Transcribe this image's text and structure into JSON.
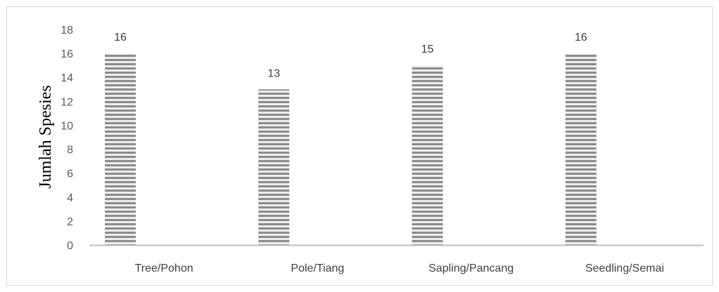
{
  "chart_data": {
    "type": "bar",
    "title": "",
    "xlabel": "",
    "ylabel": "Jumlah Spesies",
    "categories": [
      "Tree/Pohon",
      "Pole/Tiang",
      "Sapling/Pancang",
      "Seedling/Semai"
    ],
    "values": [
      16,
      13,
      15,
      16
    ],
    "data_labels": [
      "16",
      "13",
      "15",
      "16"
    ],
    "ylim": [
      0,
      18
    ],
    "yticks": [
      "0",
      "2",
      "4",
      "6",
      "8",
      "10",
      "12",
      "14",
      "16",
      "18"
    ],
    "grid": false,
    "legend": "none",
    "bar_pattern": "horizontal-stripes",
    "colors": {
      "bar_stripe_dark": "#8c8c8c",
      "bar_stripe_light": "#ededed",
      "axis": "#bfbfbf",
      "frame": "#d9d9d9"
    }
  }
}
